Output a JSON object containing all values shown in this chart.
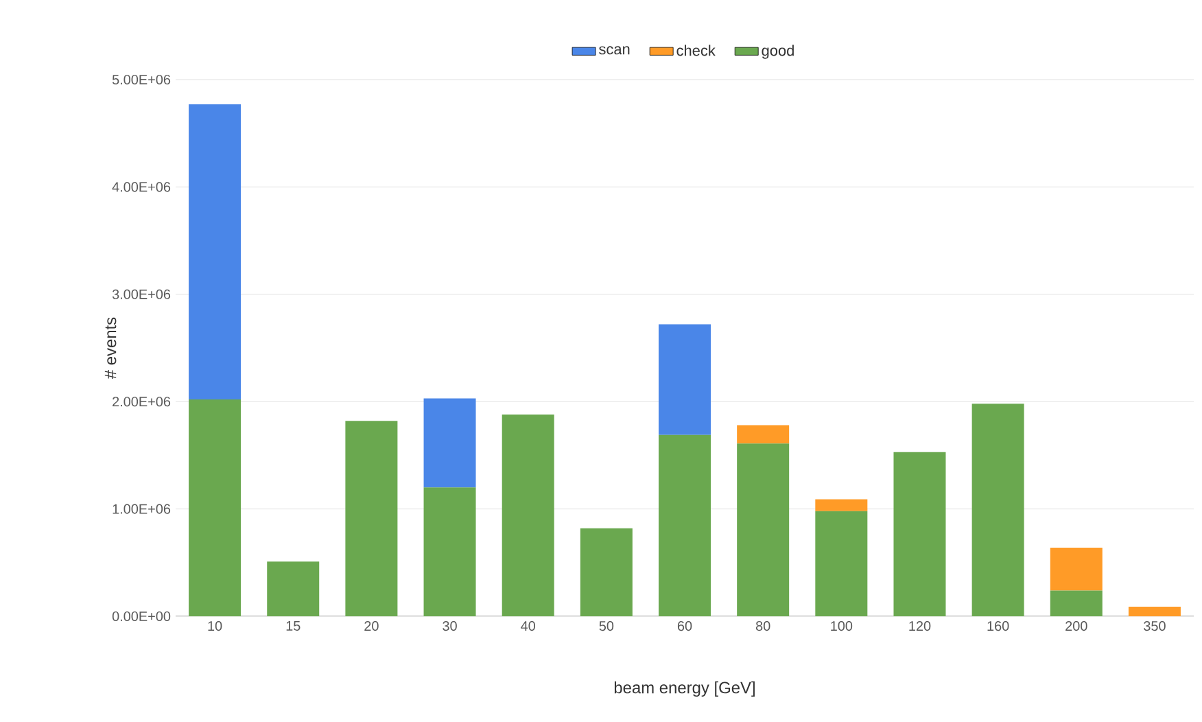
{
  "chart_data": {
    "type": "bar",
    "stacked": true,
    "xlabel": "beam energy [GeV]",
    "ylabel": "# events",
    "categories": [
      "10",
      "15",
      "20",
      "30",
      "40",
      "50",
      "60",
      "80",
      "100",
      "120",
      "160",
      "200",
      "350"
    ],
    "series": [
      {
        "name": "good",
        "color": "#6aa84f",
        "values": [
          2020000,
          510000,
          1820000,
          1200000,
          1880000,
          820000,
          1690000,
          1610000,
          980000,
          1530000,
          1980000,
          240000,
          0
        ]
      },
      {
        "name": "check",
        "color": "#ff9b27",
        "values": [
          0,
          0,
          0,
          0,
          0,
          0,
          0,
          170000,
          110000,
          0,
          0,
          400000,
          90000
        ]
      },
      {
        "name": "scan",
        "color": "#4a86e8",
        "values": [
          2750000,
          0,
          0,
          830000,
          0,
          0,
          1030000,
          0,
          0,
          0,
          0,
          0,
          0
        ]
      }
    ],
    "ylim": [
      0,
      5000000
    ],
    "yticks": [
      {
        "value": 0,
        "label": "0.00E+00"
      },
      {
        "value": 1000000,
        "label": "1.00E+06"
      },
      {
        "value": 2000000,
        "label": "2.00E+06"
      },
      {
        "value": 3000000,
        "label": "3.00E+06"
      },
      {
        "value": 4000000,
        "label": "4.00E+06"
      },
      {
        "value": 5000000,
        "label": "5.00E+06"
      }
    ],
    "grid": "y",
    "legend": "top"
  }
}
